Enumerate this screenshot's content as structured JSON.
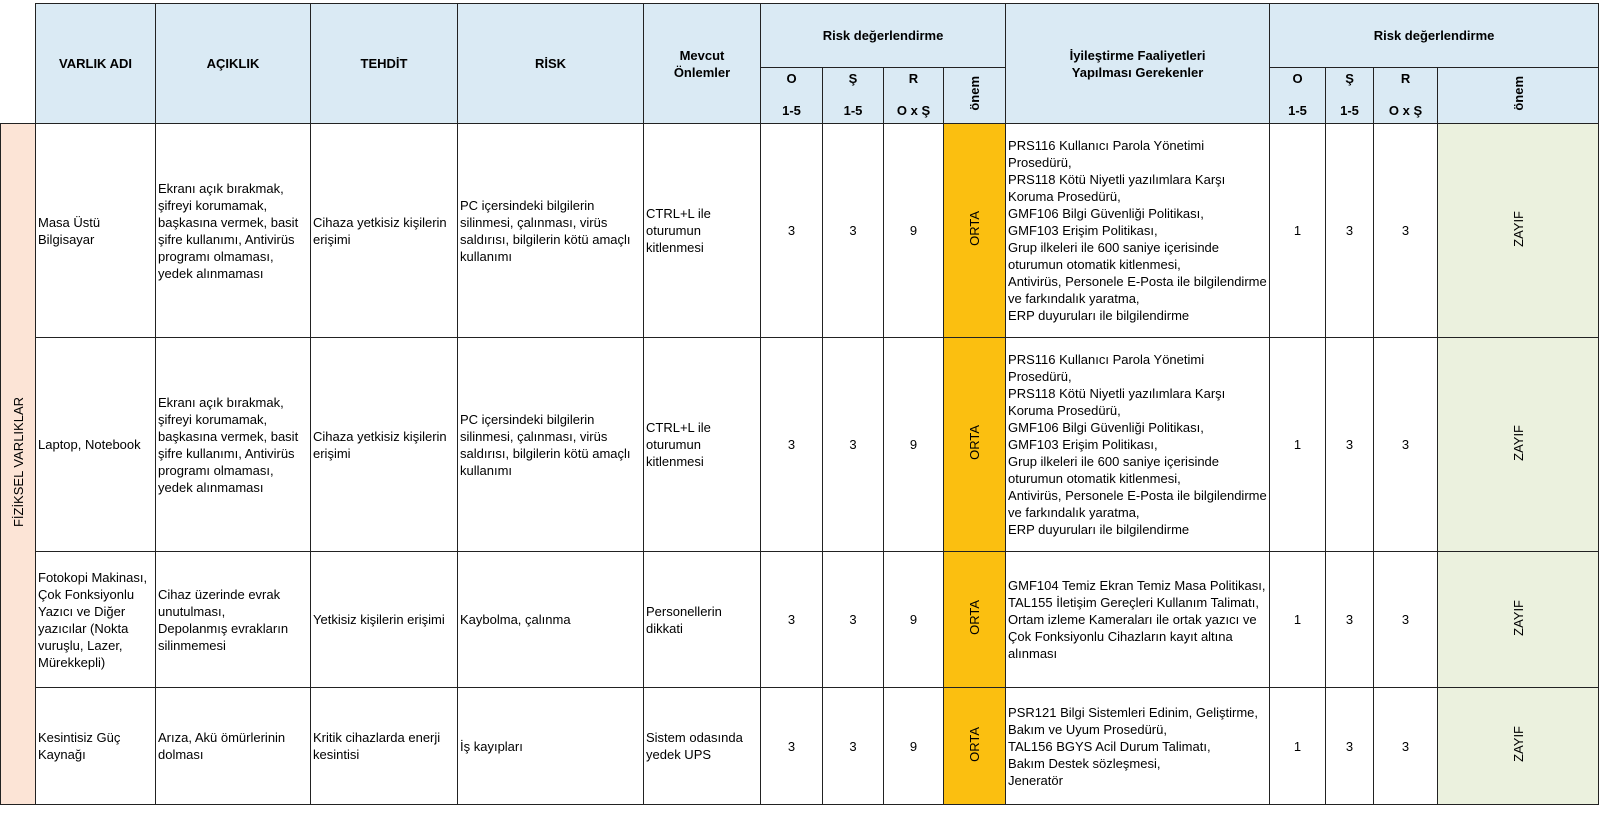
{
  "header": {
    "varlik_adi": "VARLIK ADI",
    "aciklik": "AÇIKLIK",
    "tehdit": "TEHDİT",
    "risk": "RİSK",
    "mevcut_onlemler": "Mevcut\nÖnlemler",
    "risk_degerlendirme_1": "Risk değerlendirme",
    "iyilestirme": "İyileştirme Faaliyetleri\nYapılması Gerekenler",
    "risk_degerlendirme_2": "Risk değerlendirme",
    "sub": {
      "o": "O",
      "o_range": "1-5",
      "s": "Ş",
      "s_range": "1-5",
      "r": "R",
      "r_formula": "O x Ş",
      "onem": "önem"
    }
  },
  "category": "FİZİKSEL VARLIKLAR",
  "colors": {
    "header": "#daeaf4",
    "category": "#fce4d6",
    "orta": "#fbbf10",
    "zayif": "#ebf1de"
  },
  "rows": [
    {
      "varlik": "Masa Üstü\nBilgisayar",
      "aciklik": "Ekranı açık bırakmak, şifreyi korumamak, başkasına vermek, basit şifre kullanımı, Antivirüs programı olmaması, yedek alınmaması",
      "tehdit": "Cihaza yetkisiz kişilerin erişimi",
      "risk": "PC içersindeki bilgilerin silinmesi, çalınması, virüs saldırısı, bilgilerin kötü amaçlı kullanımı",
      "mevcut": "CTRL+L ile oturumun kitlenmesi",
      "o1": "3",
      "s1": "3",
      "r1": "9",
      "onem1": "ORTA",
      "iyilestirme": "PRS116 Kullanıcı Parola Yönetimi Prosedürü,\nPRS118 Kötü Niyetli yazılımlara Karşı Koruma Prosedürü,\nGMF106 Bilgi Güvenliği Politikası,\nGMF103 Erişim Politikası,\nGrup ilkeleri ile 600 saniye içerisinde oturumun otomatik kitlenmesi,\nAntivirüs, Personele E-Posta ile bilgilendirme ve farkındalık yaratma,\nERP duyuruları ile bilgilendirme",
      "o2": "1",
      "s2": "3",
      "r2": "3",
      "onem2": "ZAYIF"
    },
    {
      "varlik": "Laptop, Notebook",
      "aciklik": "Ekranı açık bırakmak, şifreyi korumamak, başkasına vermek, basit şifre kullanımı, Antivirüs programı olmaması, yedek alınmaması",
      "tehdit": "Cihaza yetkisiz kişilerin erişimi",
      "risk": "PC içersindeki bilgilerin silinmesi, çalınması, virüs saldırısı, bilgilerin kötü amaçlı kullanımı",
      "mevcut": "CTRL+L ile oturumun kitlenmesi",
      "o1": "3",
      "s1": "3",
      "r1": "9",
      "onem1": "ORTA",
      "iyilestirme": "PRS116 Kullanıcı Parola Yönetimi Prosedürü,\nPRS118 Kötü Niyetli yazılımlara Karşı Koruma Prosedürü,\nGMF106 Bilgi Güvenliği Politikası,\nGMF103 Erişim Politikası,\nGrup ilkeleri ile 600 saniye içerisinde oturumun otomatik kitlenmesi,\nAntivirüs, Personele E-Posta ile bilgilendirme ve farkındalık yaratma,\nERP duyuruları ile bilgilendirme",
      "o2": "1",
      "s2": "3",
      "r2": "3",
      "onem2": "ZAYIF"
    },
    {
      "varlik": "Fotokopi Makinası, Çok Fonksiyonlu Yazıcı ve Diğer yazıcılar (Nokta vuruşlu, Lazer, Mürekkepli)",
      "aciklik": "Cihaz üzerinde evrak unutulması,\nDepolanmış evrakların silinmemesi",
      "tehdit": "Yetkisiz kişilerin erişimi",
      "risk": "Kaybolma, çalınma",
      "mevcut": "Personellerin dikkati",
      "o1": "3",
      "s1": "3",
      "r1": "9",
      "onem1": "ORTA",
      "iyilestirme": "GMF104 Temiz Ekran Temiz Masa Politikası,\nTAL155 İletişim Gereçleri Kullanım Talimatı,\nOrtam izleme Kameraları ile ortak yazıcı ve Çok Fonksiyonlu Cihazların kayıt altına alınması",
      "o2": "1",
      "s2": "3",
      "r2": "3",
      "onem2": "ZAYIF"
    },
    {
      "varlik": "Kesintisiz Güç Kaynağı",
      "aciklik": "Arıza, Akü ömürlerinin dolması",
      "tehdit": "Kritik cihazlarda enerji kesintisi",
      "risk": "İş kayıpları",
      "mevcut": "Sistem odasında yedek UPS",
      "o1": "3",
      "s1": "3",
      "r1": "9",
      "onem1": "ORTA",
      "iyilestirme": "PSR121 Bilgi Sistemleri Edinim, Geliştirme, Bakım ve Uyum Prosedürü,\nTAL156 BGYS Acil Durum Talimatı,\nBakım Destek sözleşmesi,\nJeneratör",
      "o2": "1",
      "s2": "3",
      "r2": "3",
      "onem2": "ZAYIF"
    }
  ]
}
